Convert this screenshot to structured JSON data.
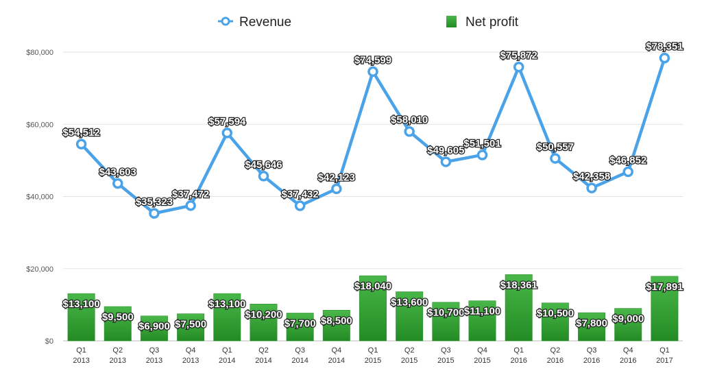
{
  "chart_data": {
    "type": "bar+line",
    "categories": [
      [
        "Q1",
        "2013"
      ],
      [
        "Q2",
        "2013"
      ],
      [
        "Q3",
        "2013"
      ],
      [
        "Q4",
        "2013"
      ],
      [
        "Q1",
        "2014"
      ],
      [
        "Q2",
        "2014"
      ],
      [
        "Q3",
        "2014"
      ],
      [
        "Q4",
        "2014"
      ],
      [
        "Q1",
        "2015"
      ],
      [
        "Q2",
        "2015"
      ],
      [
        "Q3",
        "2015"
      ],
      [
        "Q4",
        "2015"
      ],
      [
        "Q1",
        "2016"
      ],
      [
        "Q2",
        "2016"
      ],
      [
        "Q3",
        "2016"
      ],
      [
        "Q4",
        "2016"
      ],
      [
        "Q1",
        "2017"
      ]
    ],
    "series": [
      {
        "name": "Revenue",
        "kind": "line",
        "color": "#4aa3e8",
        "values": [
          54512,
          43603,
          35323,
          37472,
          57594,
          45646,
          37432,
          42123,
          74599,
          58010,
          49605,
          51501,
          75872,
          50557,
          42358,
          46852,
          78351
        ],
        "labels": [
          "$54,512",
          "$43,603",
          "$35,323",
          "$37,472",
          "$57,594",
          "$45,646",
          "$37,432",
          "$42,123",
          "$74,599",
          "$58,010",
          "$49,605",
          "$51,501",
          "$75,872",
          "$50,557",
          "$42,358",
          "$46,852",
          "$78,351"
        ]
      },
      {
        "name": "Net profit",
        "kind": "bar",
        "color": "#3aa53a",
        "values": [
          13100,
          9500,
          6900,
          7500,
          13100,
          10200,
          7700,
          8500,
          18040,
          13600,
          10700,
          11100,
          18361,
          10500,
          7800,
          9000,
          17891
        ],
        "labels": [
          "$13,100",
          "$9,500",
          "$6,900",
          "$7,500",
          "$13,100",
          "$10,200",
          "$7,700",
          "$8,500",
          "$18,040",
          "$13,600",
          "$10,700",
          "$11,100",
          "$18,361",
          "$10,500",
          "$7,800",
          "$9,000",
          "$17,891"
        ]
      }
    ],
    "ylim": [
      0,
      80000
    ],
    "yticks": [
      0,
      20000,
      40000,
      60000,
      80000
    ],
    "ytick_labels": [
      "$0",
      "$20,000",
      "$40,000",
      "$60,000",
      "$80,000"
    ],
    "grid": true,
    "legend": [
      "Revenue",
      "Net profit"
    ],
    "legend_position": "top-center",
    "title": "",
    "xlabel": "",
    "ylabel": ""
  }
}
